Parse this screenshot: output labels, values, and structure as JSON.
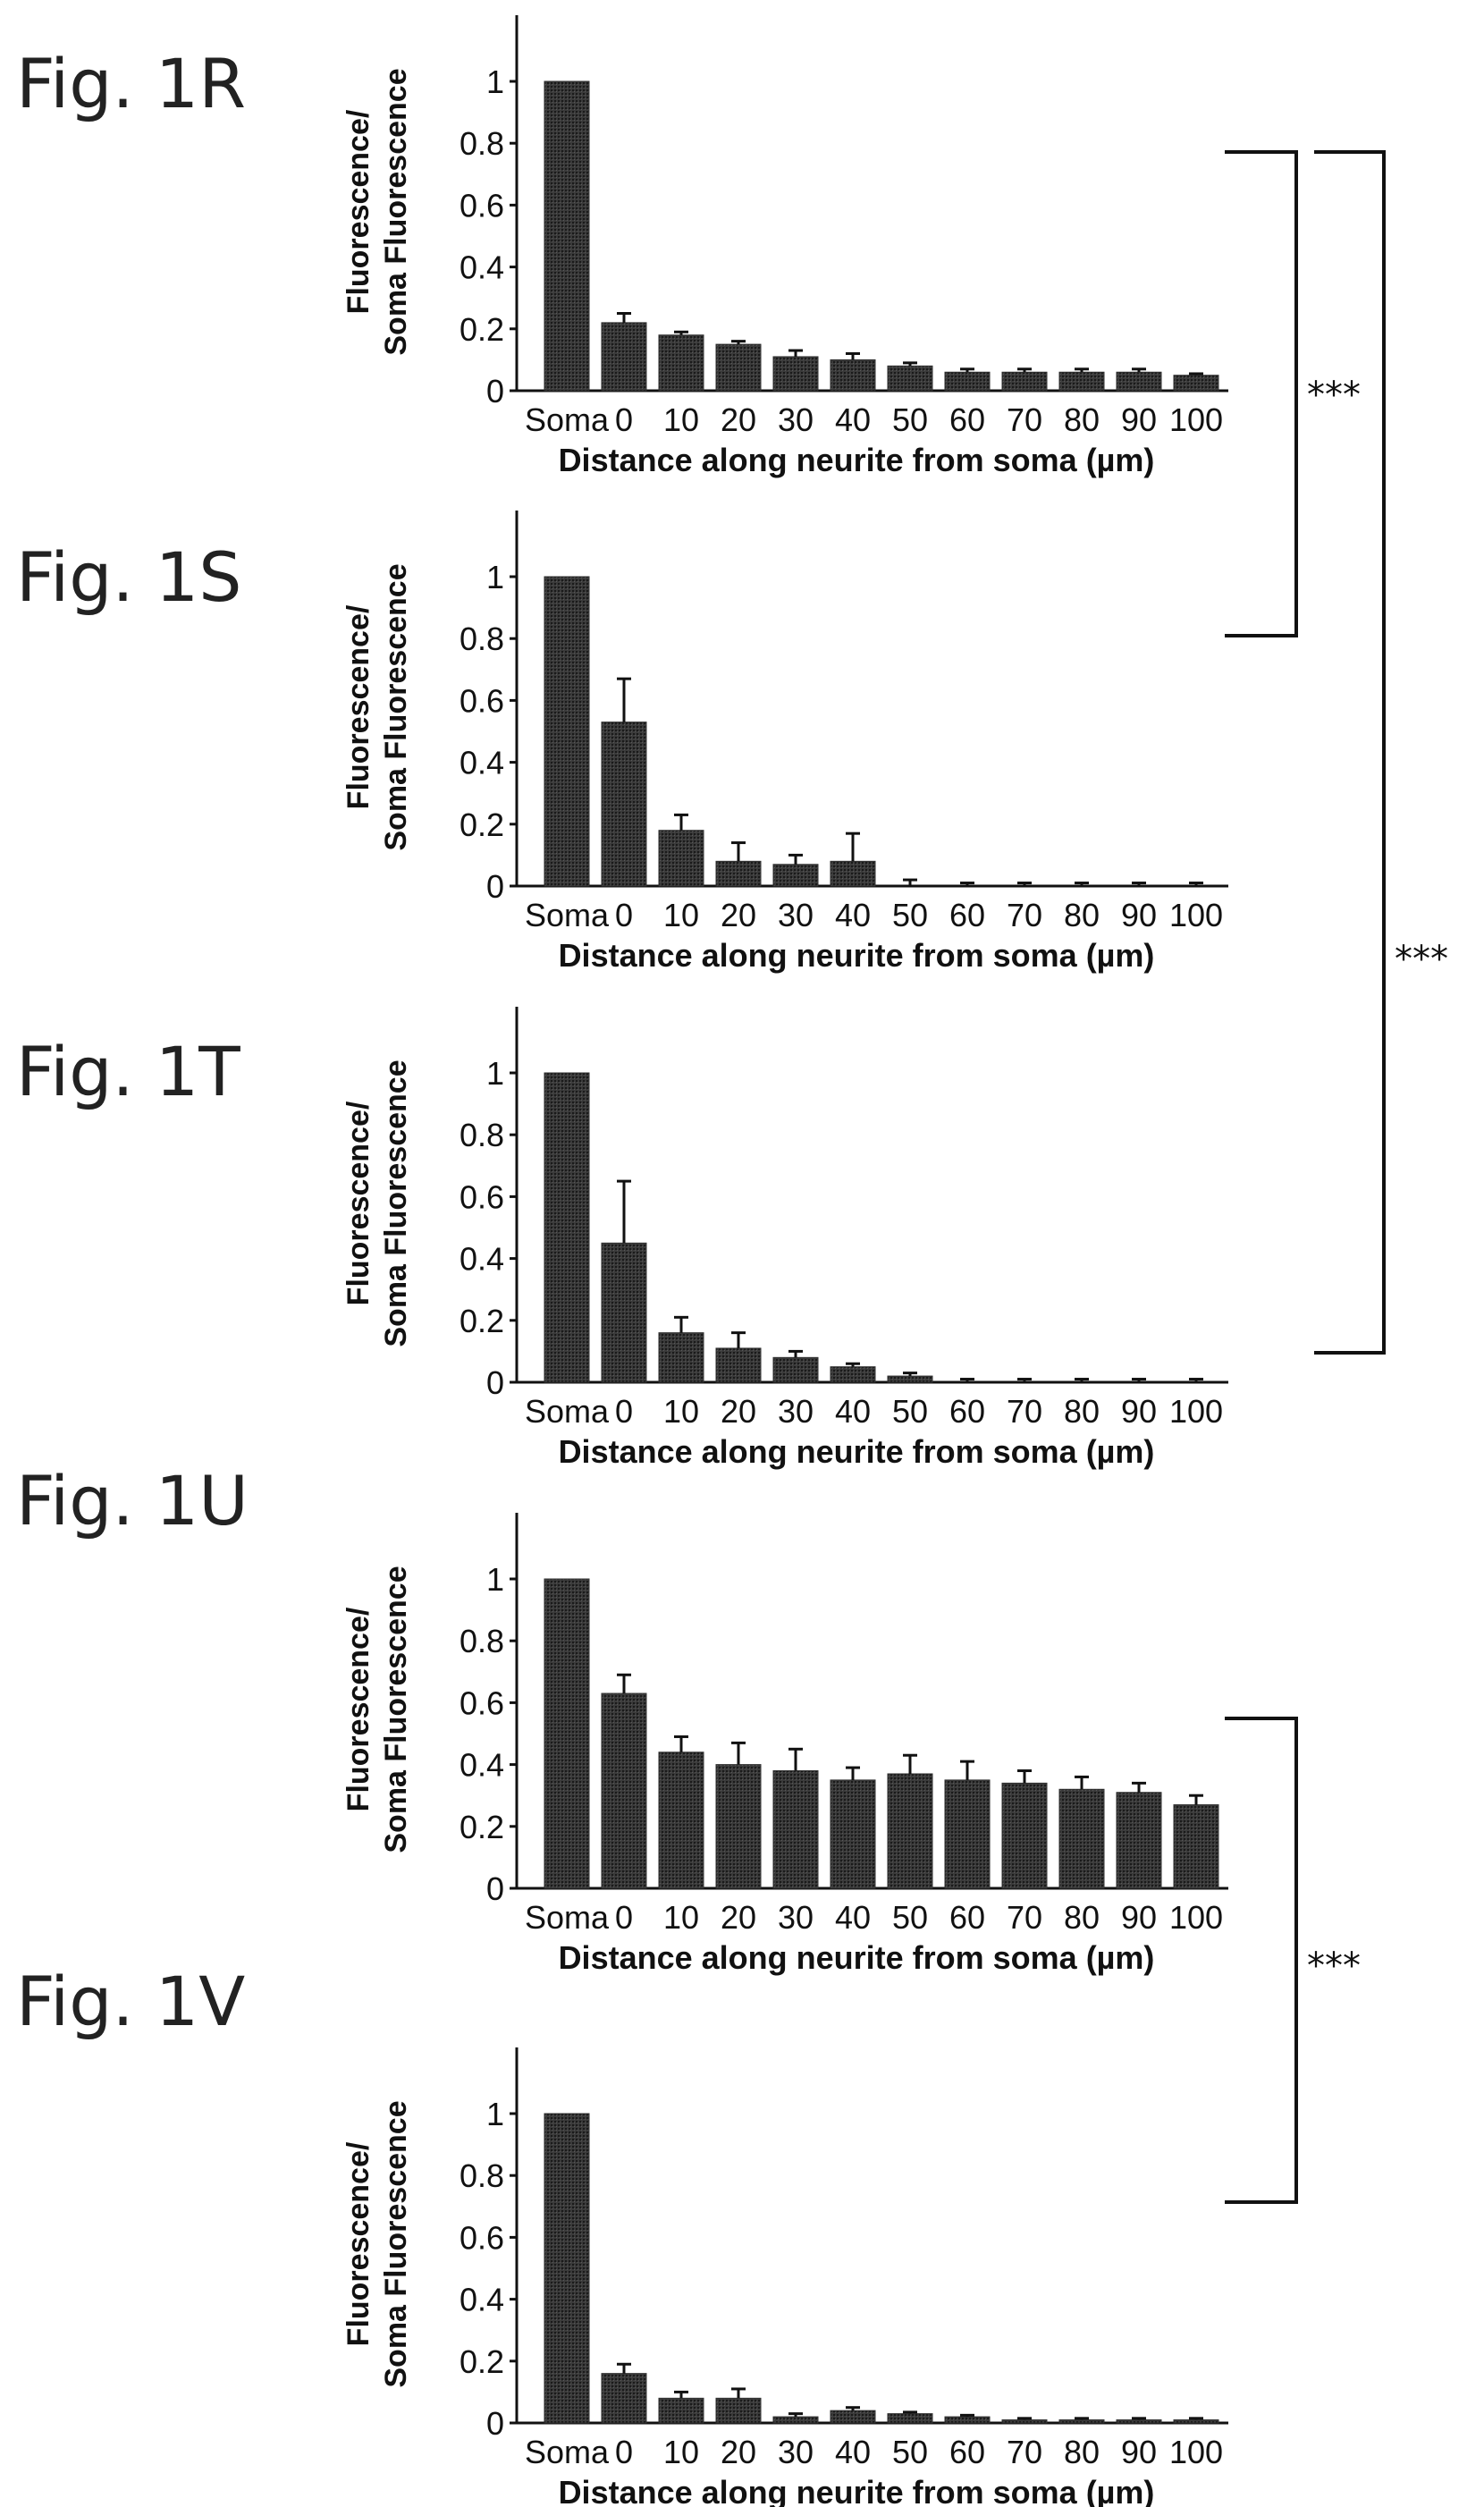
{
  "colors": {
    "bar": "#2f2f2f",
    "ink": "#111111"
  },
  "chart_data": [
    {
      "type": "bar",
      "label": "Fig. 1R",
      "categories": [
        "Soma",
        "0",
        "10",
        "20",
        "30",
        "40",
        "50",
        "60",
        "70",
        "80",
        "90",
        "100"
      ],
      "values": [
        1,
        0.22,
        0.18,
        0.15,
        0.11,
        0.1,
        0.08,
        0.06,
        0.06,
        0.06,
        0.06,
        0.05
      ],
      "errors": [
        0,
        0.03,
        0.01,
        0.01,
        0.02,
        0.02,
        0.01,
        0.01,
        0.01,
        0.01,
        0.01,
        0.005
      ],
      "xlabel": "Distance along neurite from soma (µm)",
      "ylabel": [
        "Fluorescence/",
        "Soma Fluorescence"
      ],
      "yticks": [
        "0",
        "0.2",
        "0.4",
        "0.6",
        "0.8",
        "1"
      ],
      "ylim": [
        0,
        1.2
      ]
    },
    {
      "type": "bar",
      "label": "Fig. 1S",
      "categories": [
        "Soma",
        "0",
        "10",
        "20",
        "30",
        "40",
        "50",
        "60",
        "70",
        "80",
        "90",
        "100"
      ],
      "values": [
        1,
        0.53,
        0.18,
        0.08,
        0.07,
        0.08,
        0.0,
        0.0,
        0.0,
        0.0,
        0.0,
        0.0
      ],
      "errors": [
        0,
        0.14,
        0.05,
        0.06,
        0.03,
        0.09,
        0.02,
        0.01,
        0.01,
        0.01,
        0.01,
        0.01
      ],
      "xlabel": "Distance along neurite from soma (µm)",
      "ylabel": [
        "Fluorescence/",
        "Soma Fluorescence"
      ],
      "yticks": [
        "0",
        "0.2",
        "0.4",
        "0.6",
        "0.8",
        "1"
      ],
      "ylim": [
        0,
        1.2
      ]
    },
    {
      "type": "bar",
      "label": "Fig. 1T",
      "categories": [
        "Soma",
        "0",
        "10",
        "20",
        "30",
        "40",
        "50",
        "60",
        "70",
        "80",
        "90",
        "100"
      ],
      "values": [
        1,
        0.45,
        0.16,
        0.11,
        0.08,
        0.05,
        0.02,
        0.0,
        0.0,
        0.0,
        0.0,
        0.0
      ],
      "errors": [
        0,
        0.2,
        0.05,
        0.05,
        0.02,
        0.01,
        0.01,
        0.01,
        0.01,
        0.01,
        0.01,
        0.01
      ],
      "xlabel": "Distance along neurite from soma (µm)",
      "ylabel": [
        "Fluorescence/",
        "Soma Fluorescence"
      ],
      "yticks": [
        "0",
        "0.2",
        "0.4",
        "0.6",
        "0.8",
        "1"
      ],
      "ylim": [
        0,
        1.2
      ]
    },
    {
      "type": "bar",
      "label": "Fig. 1U",
      "categories": [
        "Soma",
        "0",
        "10",
        "20",
        "30",
        "40",
        "50",
        "60",
        "70",
        "80",
        "90",
        "100"
      ],
      "values": [
        1,
        0.63,
        0.44,
        0.4,
        0.38,
        0.35,
        0.37,
        0.35,
        0.34,
        0.32,
        0.31,
        0.27
      ],
      "errors": [
        0,
        0.06,
        0.05,
        0.07,
        0.07,
        0.04,
        0.06,
        0.06,
        0.04,
        0.04,
        0.03,
        0.03
      ],
      "xlabel": "Distance along neurite from soma (µm)",
      "ylabel": [
        "Fluorescence/",
        "Soma Fluorescence"
      ],
      "yticks": [
        "0",
        "0.2",
        "0.4",
        "0.6",
        "0.8",
        "1"
      ],
      "ylim": [
        0,
        1.2
      ]
    },
    {
      "type": "bar",
      "label": "Fig. 1V",
      "categories": [
        "Soma",
        "0",
        "10",
        "20",
        "30",
        "40",
        "50",
        "60",
        "70",
        "80",
        "90",
        "100"
      ],
      "values": [
        1,
        0.16,
        0.08,
        0.08,
        0.02,
        0.04,
        0.03,
        0.02,
        0.01,
        0.01,
        0.01,
        0.01
      ],
      "errors": [
        0,
        0.03,
        0.02,
        0.03,
        0.01,
        0.01,
        0.005,
        0.005,
        0.005,
        0.005,
        0.005,
        0.005
      ],
      "xlabel": "Distance along neurite from soma (µm)",
      "ylabel": [
        "Fluorescence/",
        "Soma Fluorescence"
      ],
      "yticks": [
        "0",
        "0.2",
        "0.4",
        "0.6",
        "0.8",
        "1"
      ],
      "ylim": [
        0,
        1.2
      ]
    }
  ],
  "comparisons": [
    {
      "between": [
        "Fig. 1R",
        "Fig. 1S"
      ],
      "label": "***"
    },
    {
      "between": [
        "Fig. 1R",
        "Fig. 1T"
      ],
      "label": "***"
    },
    {
      "between": [
        "Fig. 1U",
        "Fig. 1V"
      ],
      "label": "***"
    }
  ]
}
